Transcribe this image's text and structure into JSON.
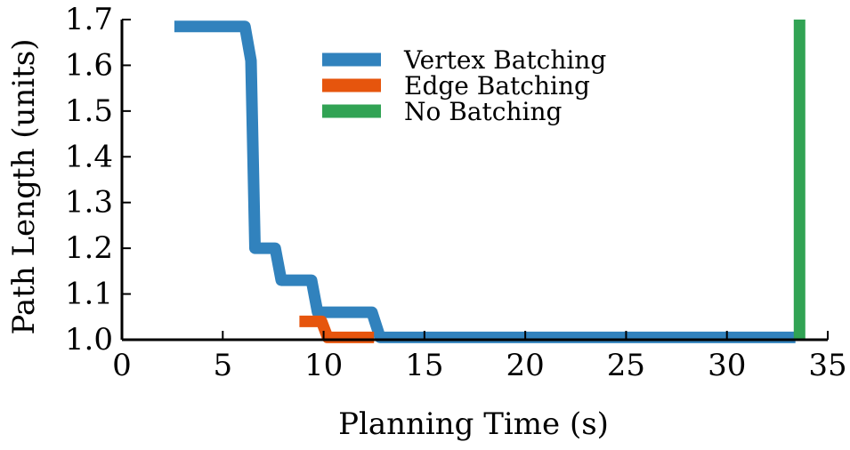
{
  "chart_data": {
    "type": "line",
    "xlabel": "Planning Time (s)",
    "ylabel": "Path Length (units)",
    "xlim": [
      0,
      35
    ],
    "ylim": [
      1.0,
      1.7
    ],
    "xticks": [
      0,
      5,
      10,
      15,
      20,
      25,
      30,
      35
    ],
    "xtick_labels": [
      "0",
      "5",
      "10",
      "15",
      "20",
      "25",
      "30",
      "35"
    ],
    "yticks": [
      1.0,
      1.1,
      1.2,
      1.3,
      1.4,
      1.5,
      1.6,
      1.7
    ],
    "ytick_labels": [
      "1.0",
      "1.1",
      "1.2",
      "1.3",
      "1.4",
      "1.5",
      "1.6",
      "1.7"
    ],
    "grid": false,
    "legend_position": "top-center",
    "series": [
      {
        "name": "Vertex Batching",
        "color": "#3182bd",
        "x": [
          2.6,
          6.1,
          6.4,
          6.6,
          6.9,
          7.6,
          7.9,
          9.4,
          9.7,
          12.4,
          12.8,
          33.4
        ],
        "y": [
          1.685,
          1.685,
          1.61,
          1.2,
          1.2,
          1.2,
          1.13,
          1.13,
          1.06,
          1.06,
          1.005,
          1.005
        ]
      },
      {
        "name": "Edge Batching",
        "color": "#e6550d",
        "x": [
          8.8,
          9.9,
          10.2,
          12.5
        ],
        "y": [
          1.04,
          1.04,
          1.005,
          1.005
        ]
      },
      {
        "name": "No Batching",
        "color": "#31a354",
        "x": [
          33.6,
          33.6
        ],
        "y": [
          1.0,
          1.7
        ]
      }
    ]
  }
}
